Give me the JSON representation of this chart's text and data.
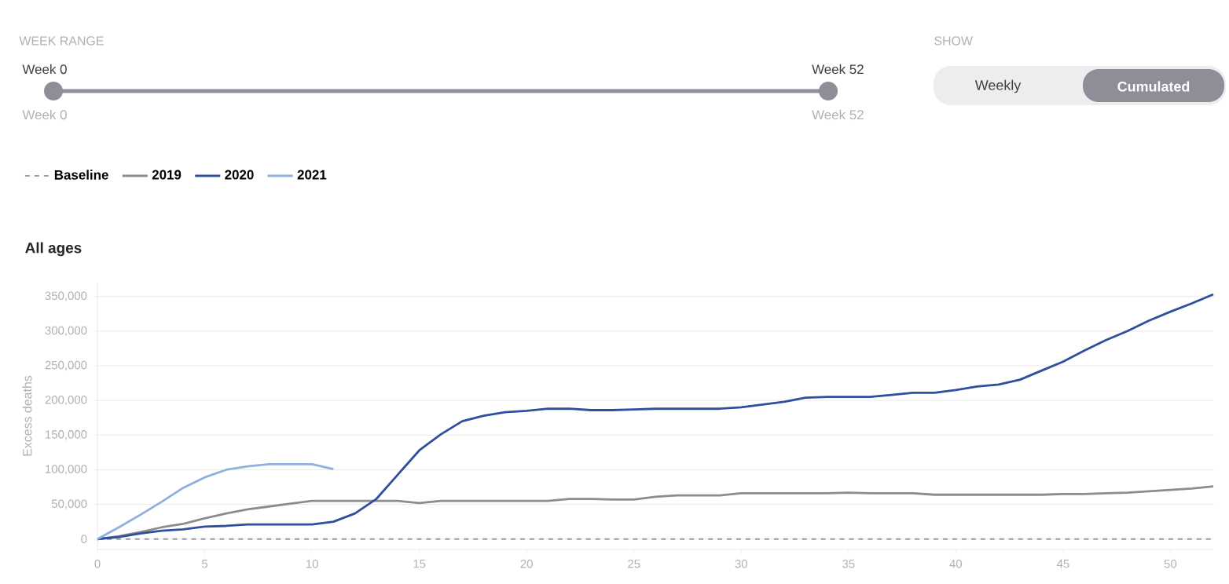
{
  "chart_data": {
    "type": "line",
    "title": "All ages",
    "ylabel": "Excess deaths",
    "annotations": [
      "WEEK RANGE",
      "Week 0",
      "Week 52",
      "Week 0",
      "Week 52",
      "SHOW",
      "Weekly",
      "Cumulated"
    ],
    "x": [
      0,
      1,
      2,
      3,
      4,
      5,
      6,
      7,
      8,
      9,
      10,
      11,
      12,
      13,
      14,
      15,
      16,
      17,
      18,
      19,
      20,
      21,
      22,
      23,
      24,
      25,
      26,
      27,
      28,
      29,
      30,
      31,
      32,
      33,
      34,
      35,
      36,
      37,
      38,
      39,
      40,
      41,
      42,
      43,
      44,
      45,
      46,
      47,
      48,
      49,
      50,
      51,
      52
    ],
    "series": [
      {
        "name": "Baseline",
        "color": "#9a9aa6",
        "line_style": "dashed",
        "x": [
          0,
          52
        ],
        "values": [
          0,
          0
        ]
      },
      {
        "name": "2019",
        "color": "#8c8c8c",
        "values": [
          0,
          4000,
          10000,
          17000,
          22000,
          30000,
          37000,
          43000,
          47000,
          51000,
          55000,
          55000,
          55000,
          55000,
          55000,
          52000,
          55000,
          55000,
          55000,
          55000,
          55000,
          55000,
          58000,
          58000,
          57000,
          57000,
          61000,
          63000,
          63000,
          63000,
          66000,
          66000,
          66000,
          66000,
          66000,
          67000,
          66000,
          66000,
          66000,
          64000,
          64000,
          64000,
          64000,
          64000,
          64000,
          65000,
          65000,
          66000,
          67000,
          69000,
          71000,
          73000,
          76000
        ]
      },
      {
        "name": "2020",
        "color": "#2e4f9e",
        "values": [
          0,
          3000,
          8000,
          12000,
          14000,
          18000,
          19000,
          21000,
          21000,
          21000,
          21000,
          25000,
          37000,
          58000,
          93000,
          128000,
          151000,
          170000,
          178000,
          183000,
          185000,
          188000,
          188000,
          186000,
          186000,
          187000,
          188000,
          188000,
          188000,
          188000,
          190000,
          194000,
          198000,
          204000,
          205000,
          205000,
          205000,
          208000,
          211000,
          211000,
          215000,
          220000,
          223000,
          230000,
          243000,
          256000,
          272000,
          287000,
          300000,
          315000,
          328000,
          340000,
          353000
        ]
      },
      {
        "name": "2021",
        "color": "#8fb0dc",
        "x": [
          0,
          1,
          2,
          3,
          4,
          5,
          6,
          7,
          8,
          9,
          10,
          11
        ],
        "values": [
          0,
          17000,
          35000,
          54000,
          74000,
          89000,
          100000,
          105000,
          108000,
          108000,
          108000,
          101000
        ]
      }
    ],
    "xlim": [
      0,
      52
    ],
    "xticks": [
      0,
      5,
      10,
      15,
      20,
      25,
      30,
      35,
      40,
      45,
      50
    ],
    "ylim": [
      -15000,
      370000
    ],
    "yticks": [
      {
        "value": 0,
        "label": "0"
      },
      {
        "value": 50000,
        "label": "50,000"
      },
      {
        "value": 100000,
        "label": "100,000"
      },
      {
        "value": 150000,
        "label": "150,000"
      },
      {
        "value": 200000,
        "label": "200,000"
      },
      {
        "value": 250000,
        "label": "250,000"
      },
      {
        "value": 300000,
        "label": "300,000"
      },
      {
        "value": 350000,
        "label": "350,000"
      }
    ],
    "grid": "y",
    "legend": "top left",
    "line_style": "solid"
  }
}
